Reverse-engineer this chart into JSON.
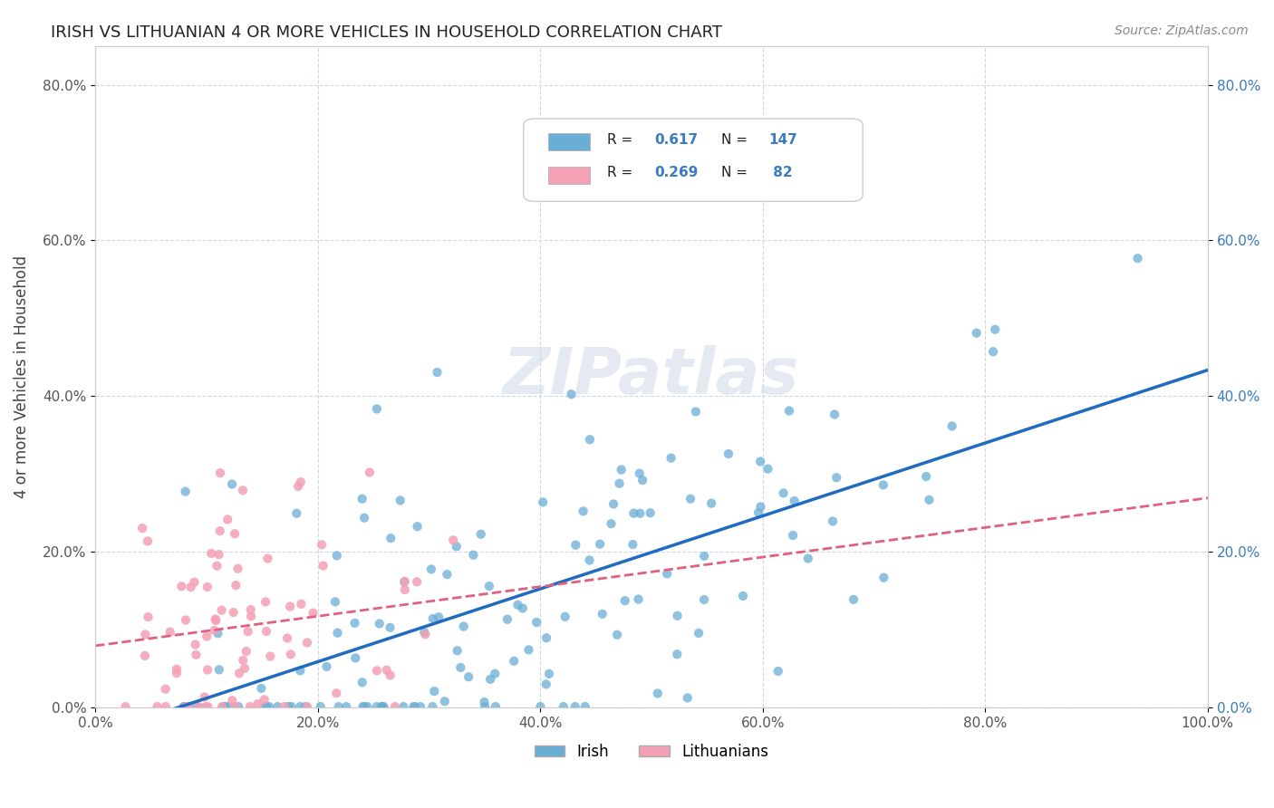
{
  "title": "IRISH VS LITHUANIAN 4 OR MORE VEHICLES IN HOUSEHOLD CORRELATION CHART",
  "source": "Source: ZipAtlas.com",
  "ylabel": "4 or more Vehicles in Household",
  "watermark": "ZIPatlas",
  "legend_irish_R": 0.617,
  "legend_irish_N": 147,
  "legend_lith_R": 0.269,
  "legend_lith_N": 82,
  "xlim": [
    0.0,
    1.0
  ],
  "ylim": [
    0.0,
    0.85
  ],
  "xticks": [
    0.0,
    0.2,
    0.4,
    0.6,
    0.8,
    1.0
  ],
  "yticks": [
    0.0,
    0.2,
    0.4,
    0.6,
    0.8
  ],
  "xtick_labels": [
    "0.0%",
    "20.0%",
    "40.0%",
    "60.0%",
    "80.0%",
    "100.0%"
  ],
  "ytick_labels": [
    "0.0%",
    "20.0%",
    "40.0%",
    "60.0%",
    "80.0%"
  ],
  "irish_color": "#6aaed6",
  "lith_color": "#f4a0b5",
  "trendline_irish_color": "#1f6bbf",
  "trendline_lith_color": "#e06080",
  "background_color": "#ffffff",
  "grid_color": "#d0d8e8",
  "text_color": "#222222",
  "axis_label_color": "#555555",
  "right_axis_color": "#3a7bbf",
  "source_color": "#888888"
}
